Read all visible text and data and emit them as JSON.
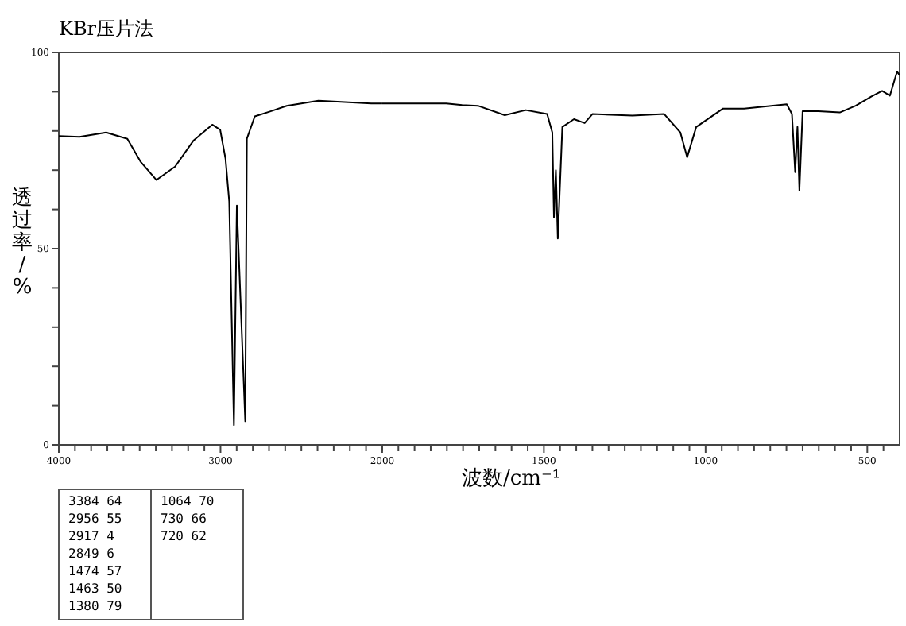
{
  "chart_data": [
    {
      "type": "line",
      "title": "KBr压片法",
      "xlabel": "波数/cm⁻¹",
      "ylabel": "透过率/%",
      "xlim": [
        4000,
        2000
      ],
      "ylim": [
        0,
        100
      ],
      "xticks": [
        4000,
        {
          "value": 3900,
          "label": null
        },
        {
          "value": 3800,
          "label": null
        },
        {
          "value": 3700,
          "label": null
        },
        {
          "value": 3600,
          "label": null
        },
        {
          "value": 3500,
          "label": null
        },
        {
          "value": 3400,
          "label": null
        },
        {
          "value": 3300,
          "label": null
        },
        {
          "value": 3200,
          "label": null
        },
        {
          "value": 3100,
          "label": null
        },
        3000,
        {
          "value": 2900,
          "label": null
        },
        {
          "value": 2800,
          "label": null
        },
        {
          "value": 2700,
          "label": null
        },
        {
          "value": 2600,
          "label": null
        },
        {
          "value": 2500,
          "label": null
        },
        {
          "value": 2400,
          "label": null
        },
        {
          "value": 2300,
          "label": null
        },
        {
          "value": 2200,
          "label": null
        },
        {
          "value": 2100,
          "label": null
        },
        2000
      ],
      "yticks": [
        0,
        {
          "value": 10,
          "label": null
        },
        {
          "value": 20,
          "label": null
        },
        {
          "value": 30,
          "label": null
        },
        {
          "value": 40,
          "label": null
        },
        50,
        {
          "value": 60,
          "label": null
        },
        {
          "value": 70,
          "label": null
        },
        {
          "value": 80,
          "label": null
        },
        {
          "value": 90,
          "label": null
        },
        100
      ],
      "grid": false,
      "series": [
        {
          "color": "#000000",
          "x": [
            4000,
            3872,
            3707,
            3576,
            3495,
            3396,
            3281,
            3166,
            3051,
            3002,
            2969,
            2946,
            2917,
            2899,
            2847,
            2837,
            2788,
            2690,
            2591,
            2394,
            2068,
            2000
          ],
          "values": [
            78.7,
            78.5,
            79.6,
            78,
            72.2,
            67.5,
            70.9,
            77.6,
            81.6,
            80.3,
            72.9,
            62,
            5,
            61,
            6,
            78,
            83.7,
            85,
            86.4,
            87.7,
            87,
            87
          ]
        }
      ],
      "annotations": [
        "3384 64",
        "2956 55",
        "2917 4",
        "2849 6",
        "1474 57",
        "1463 50",
        "1380 79",
        "1064 70",
        "730 66",
        "720 62"
      ]
    },
    {
      "type": "line",
      "tick_labels": "x",
      "xlim": [
        2000,
        400
      ],
      "ylim": [
        0,
        100
      ],
      "xticks": [
        {
          "value": 2000,
          "label": null
        },
        {
          "value": 1950,
          "label": null
        },
        {
          "value": 1900,
          "label": null
        },
        {
          "value": 1850,
          "label": null
        },
        {
          "value": 1800,
          "label": null
        },
        {
          "value": 1750,
          "label": null
        },
        {
          "value": 1700,
          "label": null
        },
        {
          "value": 1650,
          "label": null
        },
        {
          "value": 1600,
          "label": null
        },
        {
          "value": 1550,
          "label": null
        },
        1500,
        {
          "value": 1450,
          "label": null
        },
        {
          "value": 1400,
          "label": null
        },
        {
          "value": 1350,
          "label": null
        },
        {
          "value": 1300,
          "label": null
        },
        {
          "value": 1250,
          "label": null
        },
        {
          "value": 1200,
          "label": null
        },
        {
          "value": 1150,
          "label": null
        },
        {
          "value": 1100,
          "label": null
        },
        {
          "value": 1050,
          "label": null
        },
        1000,
        {
          "value": 950,
          "label": null
        },
        {
          "value": 900,
          "label": null
        },
        {
          "value": 850,
          "label": null
        },
        {
          "value": 800,
          "label": null
        },
        {
          "value": 750,
          "label": null
        },
        {
          "value": 700,
          "label": null
        },
        {
          "value": 650,
          "label": null
        },
        {
          "value": 600,
          "label": null
        },
        {
          "value": 550,
          "label": null
        },
        500,
        {
          "value": 450,
          "label": null
        }
      ],
      "grid": false,
      "series": [
        {
          "color": "#000000",
          "x": [
            2000,
            1802,
            1753,
            1704,
            1621,
            1556,
            1490,
            1474,
            1469,
            1463,
            1457,
            1443,
            1407,
            1374,
            1350,
            1226,
            1128,
            1078,
            1057,
            1029,
            946,
            881,
            749,
            733,
            723,
            716,
            710,
            700,
            651,
            585,
            536,
            487,
            454,
            430,
            408,
            400
          ],
          "values": [
            87,
            87,
            86.6,
            86.4,
            84,
            85.3,
            84.3,
            79.6,
            58,
            70,
            52.6,
            81,
            83,
            82,
            84.3,
            83.9,
            84.3,
            79.6,
            73.3,
            81,
            85.7,
            85.7,
            86.8,
            84.3,
            69.5,
            81,
            64.8,
            85,
            85,
            84.7,
            86.4,
            88.8,
            90.2,
            89,
            95.1,
            94.2
          ]
        }
      ]
    }
  ]
}
